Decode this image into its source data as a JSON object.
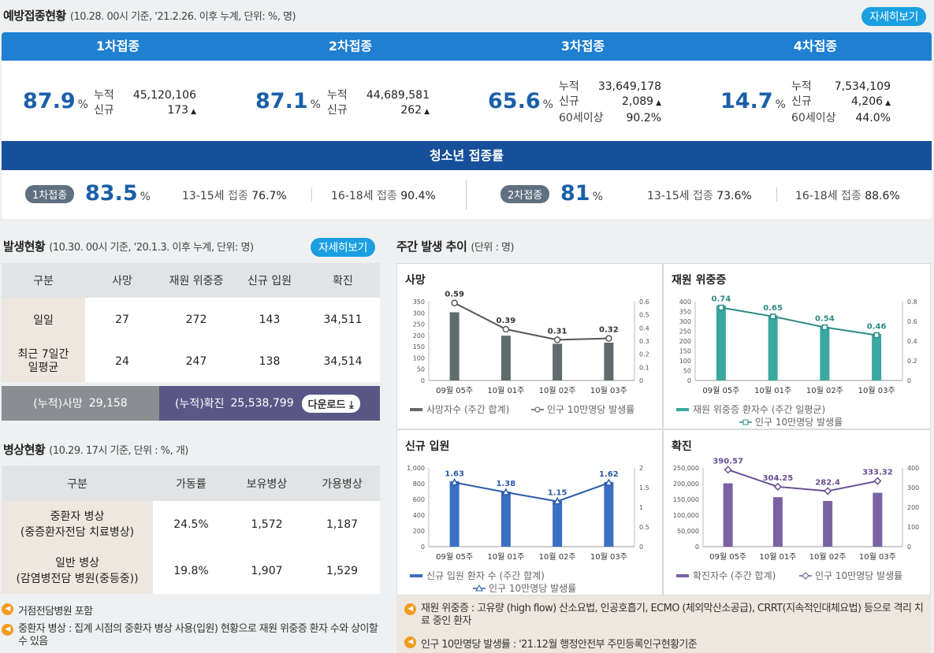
{
  "vaccination": {
    "title": "예방접종현황",
    "subtitle": "(10.28. 00시 기준, '21.2.26. 이후 누계, 단위: %, 명)",
    "detail_button": "자세히보기",
    "doses": [
      {
        "header": "1차접종",
        "percent": "87.9",
        "unit": "%",
        "rows": [
          {
            "label": "누적",
            "value": "45,120,106"
          },
          {
            "label": "신규",
            "value": "173"
          }
        ]
      },
      {
        "header": "2차접종",
        "percent": "87.1",
        "unit": "%",
        "rows": [
          {
            "label": "누적",
            "value": "44,689,581"
          },
          {
            "label": "신규",
            "value": "262"
          }
        ]
      },
      {
        "header": "3차접종",
        "percent": "65.6",
        "unit": "%",
        "rows": [
          {
            "label": "누적",
            "value": "33,649,178"
          },
          {
            "label": "신규",
            "value": "2,089"
          },
          {
            "label": "60세이상",
            "value": "90.2%"
          }
        ]
      },
      {
        "header": "4차접종",
        "percent": "14.7",
        "unit": "%",
        "rows": [
          {
            "label": "누적",
            "value": "7,534,109"
          },
          {
            "label": "신규",
            "value": "4,206"
          },
          {
            "label": "60세이상",
            "value": "44.0%"
          }
        ]
      }
    ],
    "youth": {
      "header": "청소년 접종률",
      "first": {
        "badge": "1차접종",
        "percent": "83.5",
        "unit": "%",
        "age1": "13-15세",
        "label1": "접종",
        "val1": "76.7%",
        "age2": "16-18세",
        "label2": "접종",
        "val2": "90.4%"
      },
      "second": {
        "badge": "2차접종",
        "percent": "81",
        "unit": "%",
        "age1": "13-15세",
        "label1": "접종",
        "val1": "73.6%",
        "age2": "16-18세",
        "label2": "접종",
        "val2": "88.6%"
      }
    }
  },
  "occurrence": {
    "title": "발생현황",
    "subtitle": "(10.30. 00시 기준, '20.1.3. 이후 누계, 단위: 명)",
    "detail_button": "자세히보기",
    "headers": [
      "구분",
      "사망",
      "재원 위중증",
      "신규 입원",
      "확진"
    ],
    "rows": [
      {
        "label": "일일",
        "values": [
          "27",
          "272",
          "143",
          "34,511"
        ]
      },
      {
        "label": "최근 7일간\n일평균",
        "values": [
          "24",
          "247",
          "138",
          "34,514"
        ]
      }
    ],
    "cum_death_label": "(누적)사망",
    "cum_death_value": "29,158",
    "cum_confirmed_label": "(누적)확진",
    "cum_confirmed_value": "25,538,799",
    "download_label": "다운로드"
  },
  "beds": {
    "title": "병상현황",
    "subtitle": "(10.29. 17시 기준, 단위 : %, 개)",
    "headers": [
      "구분",
      "가동률",
      "보유병상",
      "가용병상"
    ],
    "rows": [
      {
        "label": "중환자 병상\n(중증환자전담 치료병상)",
        "values": [
          "24.5%",
          "1,572",
          "1,187"
        ]
      },
      {
        "label": "일반 병상\n(감염병전담 병원(중등중))",
        "values": [
          "19.8%",
          "1,907",
          "1,529"
        ]
      }
    ],
    "notes": [
      "거점전담병원 포함",
      "중환자 병상 : 집계 시점의 중환자 병상 사용(입원) 현황으로 재원 위중증 환자 수와 상이할 수 있음"
    ]
  },
  "weekly": {
    "title": "주간 발생 추이",
    "subtitle": "(단위 : 명)",
    "notes": [
      "재원 위중증 : 고유량 (high flow) 산소요법, 인공호흡기, ECMO (체외막산소공급), CRRT(지속적인대체요법) 등으로 격리 치료 중인 환자",
      "인구 10만명당 발생률 : '21.12월 행정안전부 주민등록인구현황기준"
    ]
  },
  "chart_data": [
    {
      "type": "bar",
      "title": "사망",
      "categories": [
        "09월 05주",
        "10월 01주",
        "10월 02주",
        "10월 03주"
      ],
      "series": [
        {
          "name": "사망자수 (주간 합계)",
          "values": [
            303,
            199,
            163,
            168
          ],
          "color": "#5f6b6d"
        },
        {
          "name": "인구 10만명당 발생률",
          "type": "line",
          "values": [
            0.59,
            0.39,
            0.31,
            0.32
          ],
          "color": "#555555"
        }
      ],
      "ylim": [
        0,
        350
      ],
      "y_ticks": [
        0,
        50,
        100,
        150,
        200,
        250,
        300,
        350
      ],
      "y2lim": [
        0,
        0.6
      ],
      "y2_ticks": [
        0,
        0.1,
        0.2,
        0.3,
        0.4,
        0.5,
        0.6
      ]
    },
    {
      "type": "bar",
      "title": "재원 위중증",
      "categories": [
        "09월 05주",
        "10월 01주",
        "10월 02주",
        "10월 03주"
      ],
      "series": [
        {
          "name": "재원 위중증 환자수 (주간 일평균)",
          "values": [
            381,
            331,
            273,
            236
          ],
          "color": "#3aa8a0"
        },
        {
          "name": "인구 10만명당 발생률",
          "type": "line",
          "values": [
            0.74,
            0.65,
            0.54,
            0.46
          ],
          "color": "#2b8c86"
        }
      ],
      "ylim": [
        0,
        400
      ],
      "y_ticks": [
        0,
        50,
        100,
        150,
        200,
        250,
        300,
        350,
        400
      ],
      "y2lim": [
        0,
        0.8
      ],
      "y2_ticks": [
        0,
        0.2,
        0.4,
        0.6,
        0.8
      ]
    },
    {
      "type": "bar",
      "title": "신규 입원",
      "categories": [
        "09월 05주",
        "10월 01주",
        "10월 02주",
        "10월 03주"
      ],
      "series": [
        {
          "name": "신규 입원 환자 수 (주간 합계)",
          "values": [
            830,
            700,
            580,
            822
          ],
          "color": "#3a6fc4"
        },
        {
          "name": "인구 10만명당 발생률",
          "type": "line",
          "values": [
            1.63,
            1.38,
            1.15,
            1.62
          ],
          "color": "#2a5aa8"
        }
      ],
      "ylim": [
        0,
        1000
      ],
      "y_ticks": [
        0,
        200,
        400,
        600,
        800,
        "1,000"
      ],
      "y2lim": [
        0,
        2
      ],
      "y2_ticks": [
        0,
        0.5,
        1,
        1.5,
        2
      ]
    },
    {
      "type": "bar",
      "title": "확진",
      "categories": [
        "09월 05주",
        "10월 01주",
        "10월 02주",
        "10월 03주"
      ],
      "series": [
        {
          "name": "확진자수 (주간 합계)",
          "values": [
            201000,
            157000,
            145000,
            171000
          ],
          "color": "#7b62a3"
        },
        {
          "name": "인구 10만명당 발생률",
          "type": "line",
          "values": [
            390.57,
            304.25,
            282.4,
            333.32
          ],
          "color": "#6a4f94"
        }
      ],
      "ylim": [
        0,
        250000
      ],
      "y_ticks": [
        0,
        "50,000",
        "100,000",
        "150,000",
        "200,000",
        "250,000"
      ],
      "y2lim": [
        0,
        400
      ],
      "y2_ticks": [
        0,
        100,
        200,
        300,
        400
      ]
    }
  ]
}
